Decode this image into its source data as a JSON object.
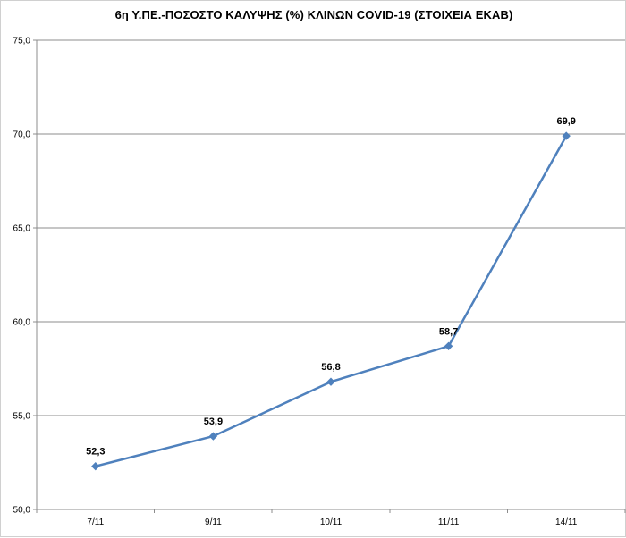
{
  "chart_data": {
    "type": "line",
    "title": "6η Υ.ΠΕ.-ΠΟΣΟΣΤΟ ΚΑΛΥΨΗΣ (%) ΚΛΙΝΩΝ COVID-19 (ΣΤΟΙΧΕΙΑ ΕΚΑΒ)",
    "categories": [
      "7/11",
      "9/11",
      "10/11",
      "11/11",
      "14/11"
    ],
    "series": [
      {
        "values": [
          52.3,
          53.9,
          56.8,
          58.7,
          69.9
        ],
        "data_labels": [
          "52,3",
          "53,9",
          "56,8",
          "58,7",
          "69,9"
        ],
        "color": "#4f81bd",
        "marker": "diamond"
      }
    ],
    "ylim": [
      50,
      75
    ],
    "y_ticks": [
      50,
      55,
      60,
      65,
      70,
      75
    ],
    "y_tick_labels": [
      "50,0",
      "55,0",
      "60,0",
      "65,0",
      "70,0",
      "75,0"
    ],
    "xlabel": "",
    "ylabel": "",
    "grid": true,
    "legend": false
  }
}
